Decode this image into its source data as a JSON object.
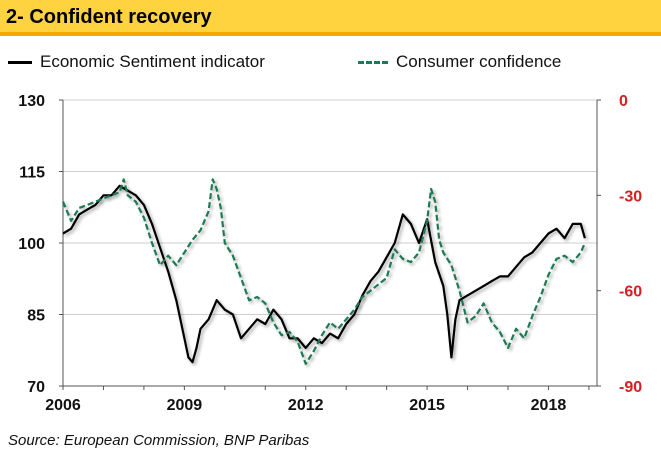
{
  "title": "2- Confident recovery",
  "source": "Source: European Commission, BNP Paribas",
  "chart_data": {
    "type": "line",
    "title": "2- Confident recovery",
    "x_range": [
      2006,
      2019.2
    ],
    "y_left": {
      "range": [
        70,
        130
      ],
      "ticks": [
        130,
        115,
        100,
        85,
        70
      ]
    },
    "y_right": {
      "range": [
        -90,
        0
      ],
      "ticks": [
        0,
        -30,
        -60,
        -90
      ]
    },
    "x_ticks": [
      2006,
      2009,
      2012,
      2015,
      2018
    ],
    "colors": {
      "esi": "#000000",
      "consumer": "#1f7a55",
      "right_axis": "#d62020",
      "title_bg": "#ffd23f"
    },
    "series": [
      {
        "name": "Economic Sentiment indicator",
        "axis": "left",
        "style": "solid",
        "x": [
          2006.0,
          2006.2,
          2006.4,
          2006.6,
          2006.8,
          2007.0,
          2007.2,
          2007.4,
          2007.6,
          2007.8,
          2008.0,
          2008.2,
          2008.4,
          2008.6,
          2008.8,
          2009.0,
          2009.1,
          2009.2,
          2009.3,
          2009.4,
          2009.6,
          2009.8,
          2010.0,
          2010.2,
          2010.4,
          2010.6,
          2010.8,
          2011.0,
          2011.2,
          2011.4,
          2011.6,
          2011.8,
          2012.0,
          2012.2,
          2012.4,
          2012.6,
          2012.8,
          2013.0,
          2013.2,
          2013.4,
          2013.6,
          2013.8,
          2014.0,
          2014.2,
          2014.4,
          2014.6,
          2014.8,
          2015.0,
          2015.2,
          2015.4,
          2015.5,
          2015.6,
          2015.7,
          2015.8,
          2016.0,
          2016.2,
          2016.4,
          2016.6,
          2016.8,
          2017.0,
          2017.2,
          2017.4,
          2017.6,
          2017.8,
          2018.0,
          2018.2,
          2018.4,
          2018.6,
          2018.8,
          2018.9
        ],
        "values": [
          102,
          103,
          106,
          107,
          108,
          110,
          110,
          112,
          111,
          110,
          108,
          104,
          99,
          94,
          88,
          80,
          76,
          75,
          78,
          82,
          84,
          88,
          86,
          85,
          80,
          82,
          84,
          83,
          86,
          84,
          80,
          80,
          78,
          80,
          79,
          81,
          80,
          83,
          85,
          89,
          92,
          94,
          97,
          100,
          106,
          104,
          100,
          105,
          96,
          91,
          85,
          76,
          84,
          88,
          89,
          90,
          91,
          92,
          93,
          93,
          95,
          97,
          98,
          100,
          102,
          103,
          101,
          104,
          104,
          101
        ]
      },
      {
        "name": "Consumer confidence",
        "axis": "right",
        "style": "dashed",
        "x": [
          2006.0,
          2006.2,
          2006.4,
          2006.6,
          2006.8,
          2007.0,
          2007.2,
          2007.4,
          2007.5,
          2007.6,
          2007.8,
          2008.0,
          2008.2,
          2008.4,
          2008.6,
          2008.8,
          2009.0,
          2009.2,
          2009.4,
          2009.6,
          2009.7,
          2009.8,
          2009.9,
          2010.0,
          2010.2,
          2010.4,
          2010.6,
          2010.8,
          2011.0,
          2011.2,
          2011.4,
          2011.6,
          2011.8,
          2012.0,
          2012.2,
          2012.4,
          2012.6,
          2012.8,
          2013.0,
          2013.2,
          2013.4,
          2013.6,
          2013.8,
          2014.0,
          2014.2,
          2014.4,
          2014.6,
          2014.8,
          2015.0,
          2015.1,
          2015.2,
          2015.3,
          2015.4,
          2015.6,
          2015.8,
          2016.0,
          2016.2,
          2016.4,
          2016.6,
          2016.8,
          2017.0,
          2017.2,
          2017.4,
          2017.6,
          2017.8,
          2018.0,
          2018.2,
          2018.4,
          2018.6,
          2018.8,
          2018.9
        ],
        "values": [
          -32,
          -38,
          -34,
          -33,
          -32,
          -31,
          -30,
          -29,
          -25,
          -30,
          -32,
          -37,
          -45,
          -52,
          -49,
          -52,
          -48,
          -44,
          -41,
          -35,
          -25,
          -28,
          -34,
          -45,
          -49,
          -56,
          -63,
          -62,
          -64,
          -70,
          -74,
          -73,
          -76,
          -83,
          -79,
          -74,
          -70,
          -72,
          -69,
          -66,
          -62,
          -60,
          -58,
          -56,
          -47,
          -50,
          -51,
          -48,
          -38,
          -28,
          -32,
          -44,
          -48,
          -52,
          -60,
          -70,
          -68,
          -64,
          -70,
          -73,
          -78,
          -72,
          -75,
          -68,
          -62,
          -55,
          -50,
          -49,
          -51,
          -48,
          -45
        ]
      }
    ]
  }
}
